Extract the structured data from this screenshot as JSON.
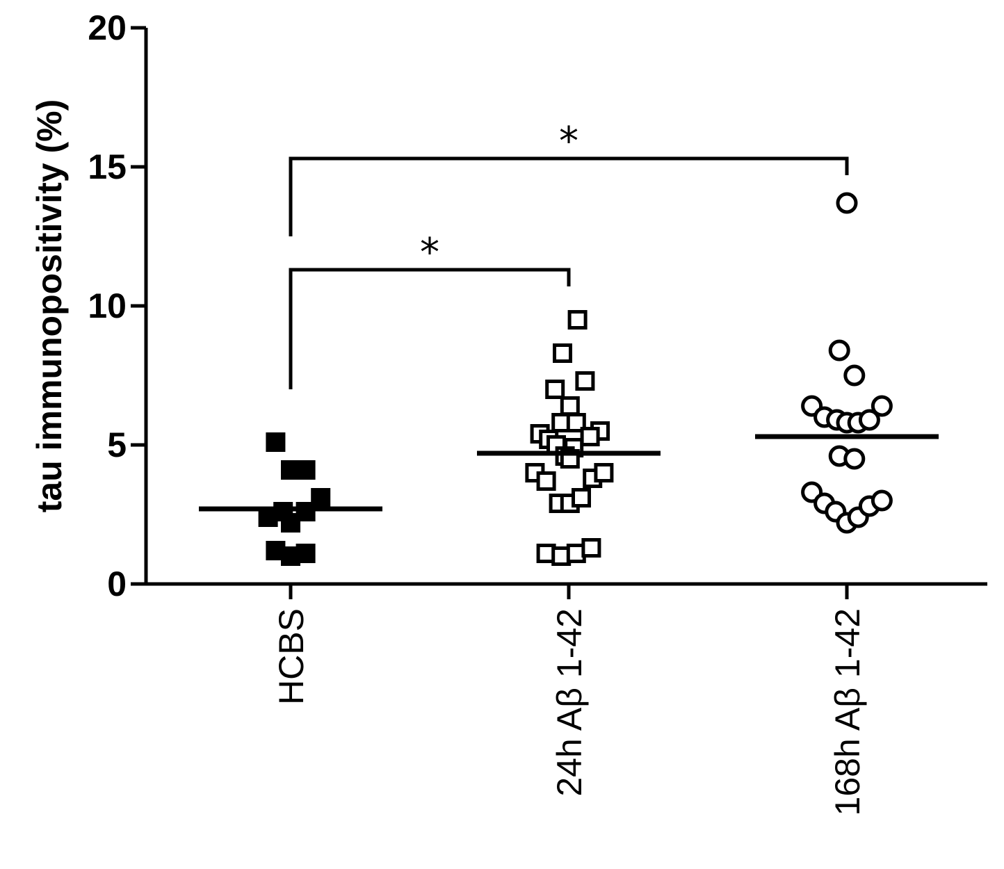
{
  "chart_data": {
    "type": "scatter",
    "title": "",
    "xlabel": "",
    "ylabel": "tau immunopositivity (%)",
    "ylim": [
      0,
      20
    ],
    "yticks": [
      0,
      5,
      10,
      15,
      20
    ],
    "grid": false,
    "categories": [
      "HCBS",
      "24h Aβ 1-42",
      "168h Aβ 1-42"
    ],
    "series": [
      {
        "category": "HCBS",
        "marker": "filled-square",
        "mean": 2.7,
        "points": [
          {
            "dx": -1.2,
            "y": 5.1
          },
          {
            "dx": 0.0,
            "y": 4.1
          },
          {
            "dx": 1.2,
            "y": 4.1
          },
          {
            "dx": 2.4,
            "y": 3.1
          },
          {
            "dx": -1.8,
            "y": 2.4
          },
          {
            "dx": -0.6,
            "y": 2.6
          },
          {
            "dx": 0.0,
            "y": 2.2
          },
          {
            "dx": 1.2,
            "y": 2.6
          },
          {
            "dx": -1.2,
            "y": 1.2
          },
          {
            "dx": 0.0,
            "y": 1.0
          },
          {
            "dx": 1.2,
            "y": 1.1
          }
        ]
      },
      {
        "category": "24h Aβ 1-42",
        "marker": "open-square",
        "mean": 4.7,
        "points": [
          {
            "dx": 0.7,
            "y": 9.5
          },
          {
            "dx": -0.5,
            "y": 8.3
          },
          {
            "dx": -1.1,
            "y": 7.0
          },
          {
            "dx": 1.3,
            "y": 7.3
          },
          {
            "dx": 0.1,
            "y": 6.4
          },
          {
            "dx": -0.6,
            "y": 5.8
          },
          {
            "dx": 0.6,
            "y": 5.8
          },
          {
            "dx": -2.3,
            "y": 5.4
          },
          {
            "dx": 2.5,
            "y": 5.5
          },
          {
            "dx": -1.6,
            "y": 5.2
          },
          {
            "dx": -1.0,
            "y": 5.0
          },
          {
            "dx": 1.7,
            "y": 5.3
          },
          {
            "dx": 0.4,
            "y": 4.9
          },
          {
            "dx": -0.3,
            "y": 4.6
          },
          {
            "dx": 0.1,
            "y": 4.5
          },
          {
            "dx": -2.7,
            "y": 4.0
          },
          {
            "dx": -1.8,
            "y": 3.7
          },
          {
            "dx": 1.9,
            "y": 3.8
          },
          {
            "dx": 2.8,
            "y": 4.0
          },
          {
            "dx": -0.8,
            "y": 2.9
          },
          {
            "dx": 0.1,
            "y": 2.9
          },
          {
            "dx": 1.0,
            "y": 3.1
          },
          {
            "dx": -1.8,
            "y": 1.1
          },
          {
            "dx": -0.6,
            "y": 1.0
          },
          {
            "dx": 0.6,
            "y": 1.1
          },
          {
            "dx": 1.8,
            "y": 1.3
          }
        ]
      },
      {
        "category": "168h Aβ 1-42",
        "marker": "open-circle",
        "mean": 5.3,
        "points": [
          {
            "dx": 0.0,
            "y": 13.7
          },
          {
            "dx": -0.6,
            "y": 8.4
          },
          {
            "dx": 0.6,
            "y": 7.5
          },
          {
            "dx": -2.8,
            "y": 6.4
          },
          {
            "dx": -1.8,
            "y": 6.0
          },
          {
            "dx": -0.8,
            "y": 5.9
          },
          {
            "dx": 0.0,
            "y": 5.8
          },
          {
            "dx": 0.9,
            "y": 5.8
          },
          {
            "dx": 1.8,
            "y": 5.9
          },
          {
            "dx": 2.8,
            "y": 6.4
          },
          {
            "dx": -0.6,
            "y": 4.6
          },
          {
            "dx": 0.6,
            "y": 4.5
          },
          {
            "dx": -2.8,
            "y": 3.3
          },
          {
            "dx": -1.8,
            "y": 2.9
          },
          {
            "dx": -0.9,
            "y": 2.6
          },
          {
            "dx": 0.0,
            "y": 2.2
          },
          {
            "dx": 0.9,
            "y": 2.4
          },
          {
            "dx": 1.8,
            "y": 2.8
          },
          {
            "dx": 2.8,
            "y": 3.0
          }
        ]
      }
    ],
    "significance": [
      {
        "from": "HCBS",
        "to": "24h Aβ 1-42",
        "label": "*",
        "y": 11.3,
        "from_drop_y": 7.0,
        "to_drop_y": 10.7
      },
      {
        "from": "HCBS",
        "to": "168h Aβ 1-42",
        "label": "*",
        "y": 15.3,
        "from_drop_y": 12.5,
        "to_drop_y": 14.7
      }
    ]
  }
}
